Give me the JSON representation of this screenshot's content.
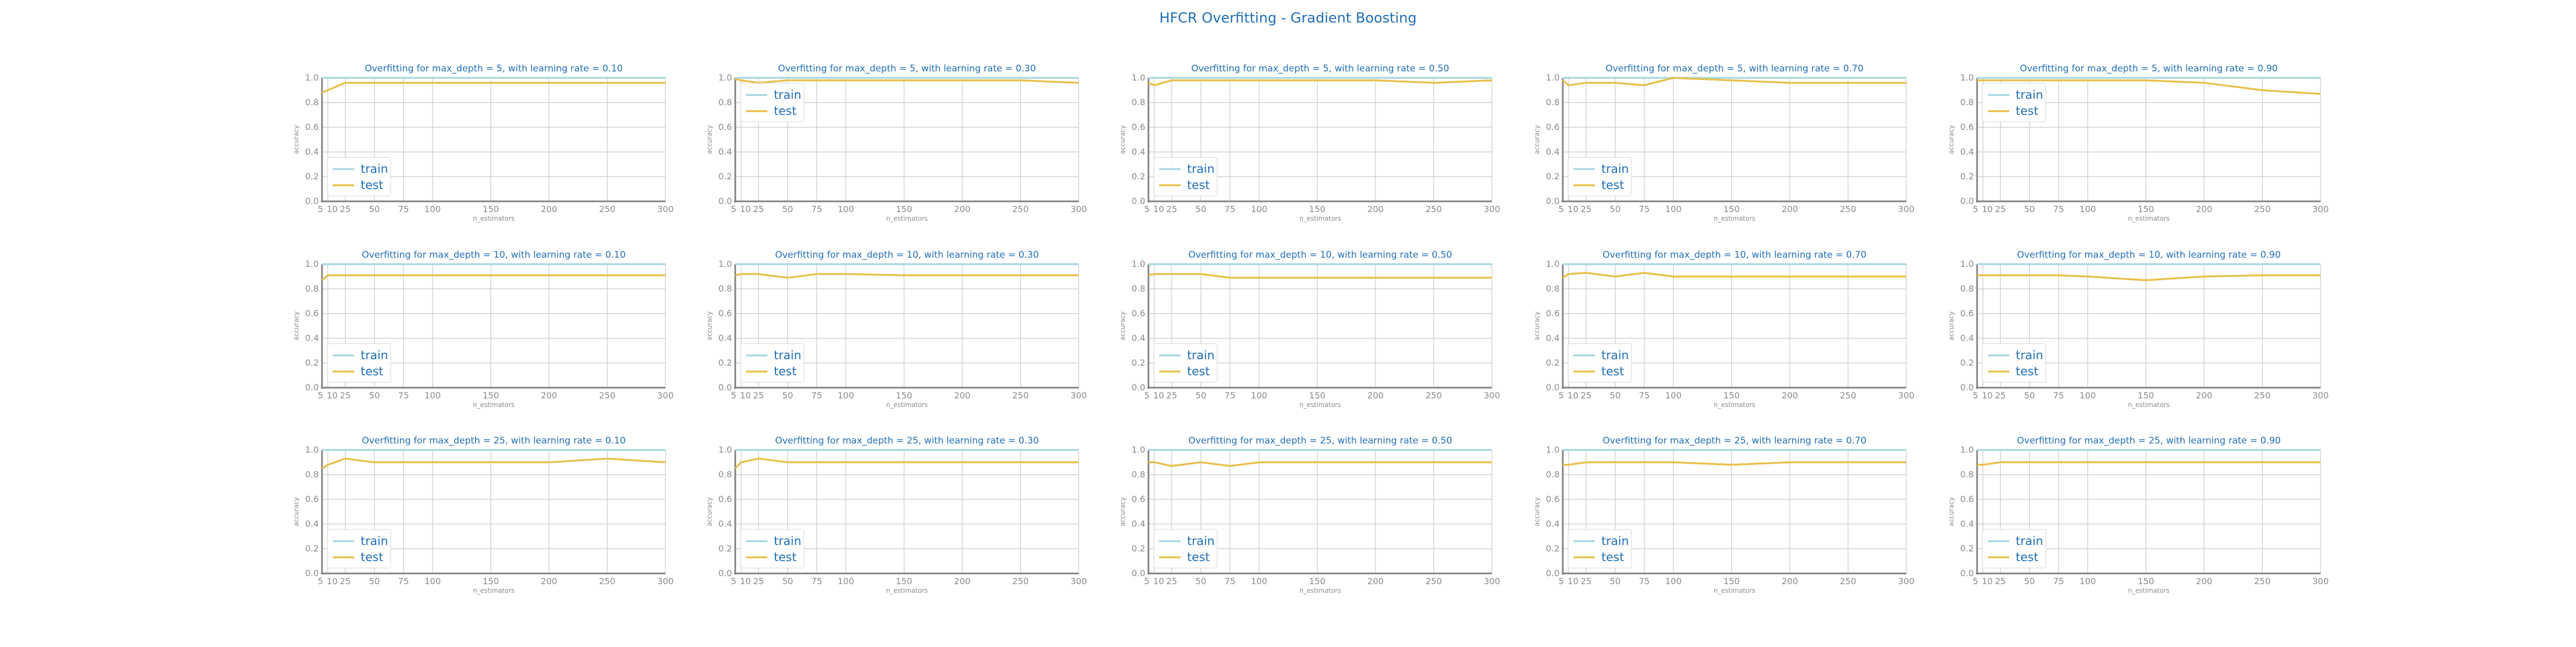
{
  "title": "HFCR Overfitting - Gradient Boosting",
  "colors": {
    "train": "#a9d8e0",
    "test": "#e8c04a",
    "title": "#1f6fb5",
    "grid": "#c8c8c8",
    "axis": "#7f7f7f",
    "tick_text": "#8a8a8a"
  },
  "chart_data": [
    {
      "type": "line",
      "title": "Overfitting for max_depth = 5, with learning rate = 0.10",
      "xlabel": "n_estimators",
      "ylabel": "accuracy",
      "x": [
        5,
        10,
        25,
        50,
        75,
        100,
        150,
        200,
        250,
        300
      ],
      "xticks": [
        5,
        10,
        25,
        50,
        75,
        100,
        150,
        200,
        250,
        300
      ],
      "ylim": [
        0,
        1
      ],
      "yticks": [
        0.0,
        0.2,
        0.4,
        0.6,
        0.8,
        1.0
      ],
      "grid": true,
      "legend": "lower left",
      "series": [
        {
          "name": "train",
          "values": [
            1,
            1,
            1,
            1,
            1,
            1,
            1,
            1,
            1,
            1
          ]
        },
        {
          "name": "test",
          "values": [
            0.88,
            0.9,
            0.96,
            0.96,
            0.96,
            0.96,
            0.96,
            0.96,
            0.96,
            0.96
          ]
        }
      ]
    },
    {
      "type": "line",
      "title": "Overfitting for max_depth = 5, with learning rate = 0.30",
      "xlabel": "n_estimators",
      "ylabel": "accuracy",
      "x": [
        5,
        10,
        25,
        50,
        75,
        100,
        150,
        200,
        250,
        300
      ],
      "xticks": [
        5,
        10,
        25,
        50,
        75,
        100,
        150,
        200,
        250,
        300
      ],
      "ylim": [
        0,
        1
      ],
      "yticks": [
        0.0,
        0.2,
        0.4,
        0.6,
        0.8,
        1.0
      ],
      "grid": true,
      "legend": "upper left",
      "series": [
        {
          "name": "train",
          "values": [
            1,
            1,
            1,
            1,
            1,
            1,
            1,
            1,
            1,
            1
          ]
        },
        {
          "name": "test",
          "values": [
            0.99,
            0.98,
            0.96,
            0.98,
            0.98,
            0.98,
            0.98,
            0.98,
            0.98,
            0.96
          ]
        }
      ]
    },
    {
      "type": "line",
      "title": "Overfitting for max_depth = 5, with learning rate = 0.50",
      "xlabel": "n_estimators",
      "ylabel": "accuracy",
      "x": [
        5,
        10,
        25,
        50,
        75,
        100,
        150,
        200,
        250,
        300
      ],
      "xticks": [
        5,
        10,
        25,
        50,
        75,
        100,
        150,
        200,
        250,
        300
      ],
      "ylim": [
        0,
        1
      ],
      "yticks": [
        0.0,
        0.2,
        0.4,
        0.6,
        0.8,
        1.0
      ],
      "grid": true,
      "legend": "lower left",
      "series": [
        {
          "name": "train",
          "values": [
            1,
            1,
            1,
            1,
            1,
            1,
            1,
            1,
            1,
            1
          ]
        },
        {
          "name": "test",
          "values": [
            0.96,
            0.94,
            0.98,
            0.98,
            0.98,
            0.98,
            0.98,
            0.98,
            0.96,
            0.98
          ]
        }
      ]
    },
    {
      "type": "line",
      "title": "Overfitting for max_depth = 5, with learning rate = 0.70",
      "xlabel": "n_estimators",
      "ylabel": "accuracy",
      "x": [
        5,
        10,
        25,
        50,
        75,
        100,
        150,
        200,
        250,
        300
      ],
      "xticks": [
        5,
        10,
        25,
        50,
        75,
        100,
        150,
        200,
        250,
        300
      ],
      "ylim": [
        0,
        1
      ],
      "yticks": [
        0.0,
        0.2,
        0.4,
        0.6,
        0.8,
        1.0
      ],
      "grid": true,
      "legend": "lower left",
      "series": [
        {
          "name": "train",
          "values": [
            1,
            1,
            1,
            1,
            1,
            1,
            1,
            1,
            1,
            1
          ]
        },
        {
          "name": "test",
          "values": [
            0.98,
            0.94,
            0.96,
            0.96,
            0.94,
            1.0,
            0.98,
            0.96,
            0.96,
            0.96
          ]
        }
      ]
    },
    {
      "type": "line",
      "title": "Overfitting for max_depth = 5, with learning rate = 0.90",
      "xlabel": "n_estimators",
      "ylabel": "accuracy",
      "x": [
        5,
        10,
        25,
        50,
        75,
        100,
        150,
        200,
        250,
        300
      ],
      "xticks": [
        5,
        10,
        25,
        50,
        75,
        100,
        150,
        200,
        250,
        300
      ],
      "ylim": [
        0,
        1
      ],
      "yticks": [
        0.0,
        0.2,
        0.4,
        0.6,
        0.8,
        1.0
      ],
      "grid": true,
      "legend": "upper left",
      "series": [
        {
          "name": "train",
          "values": [
            1,
            1,
            1,
            1,
            1,
            1,
            1,
            1,
            1,
            1
          ]
        },
        {
          "name": "test",
          "values": [
            0.98,
            0.98,
            0.98,
            0.98,
            0.98,
            0.98,
            0.98,
            0.96,
            0.9,
            0.87
          ]
        }
      ]
    },
    {
      "type": "line",
      "title": "Overfitting for max_depth = 10, with learning rate = 0.10",
      "xlabel": "n_estimators",
      "ylabel": "accuracy",
      "x": [
        5,
        10,
        25,
        50,
        75,
        100,
        150,
        200,
        250,
        300
      ],
      "xticks": [
        5,
        10,
        25,
        50,
        75,
        100,
        150,
        200,
        250,
        300
      ],
      "ylim": [
        0,
        1
      ],
      "yticks": [
        0.0,
        0.2,
        0.4,
        0.6,
        0.8,
        1.0
      ],
      "grid": true,
      "legend": "lower left",
      "series": [
        {
          "name": "train",
          "values": [
            1,
            1,
            1,
            1,
            1,
            1,
            1,
            1,
            1,
            1
          ]
        },
        {
          "name": "test",
          "values": [
            0.87,
            0.91,
            0.91,
            0.91,
            0.91,
            0.91,
            0.91,
            0.91,
            0.91,
            0.91
          ]
        }
      ]
    },
    {
      "type": "line",
      "title": "Overfitting for max_depth = 10, with learning rate = 0.30",
      "xlabel": "n_estimators",
      "ylabel": "accuracy",
      "x": [
        5,
        10,
        25,
        50,
        75,
        100,
        150,
        200,
        250,
        300
      ],
      "xticks": [
        5,
        10,
        25,
        50,
        75,
        100,
        150,
        200,
        250,
        300
      ],
      "ylim": [
        0,
        1
      ],
      "yticks": [
        0.0,
        0.2,
        0.4,
        0.6,
        0.8,
        1.0
      ],
      "grid": true,
      "legend": "lower left",
      "series": [
        {
          "name": "train",
          "values": [
            1,
            1,
            1,
            1,
            1,
            1,
            1,
            1,
            1,
            1
          ]
        },
        {
          "name": "test",
          "values": [
            0.91,
            0.92,
            0.92,
            0.89,
            0.92,
            0.92,
            0.91,
            0.91,
            0.91,
            0.91
          ]
        }
      ]
    },
    {
      "type": "line",
      "title": "Overfitting for max_depth = 10, with learning rate = 0.50",
      "xlabel": "n_estimators",
      "ylabel": "accuracy",
      "x": [
        5,
        10,
        25,
        50,
        75,
        100,
        150,
        200,
        250,
        300
      ],
      "xticks": [
        5,
        10,
        25,
        50,
        75,
        100,
        150,
        200,
        250,
        300
      ],
      "ylim": [
        0,
        1
      ],
      "yticks": [
        0.0,
        0.2,
        0.4,
        0.6,
        0.8,
        1.0
      ],
      "grid": true,
      "legend": "lower left",
      "series": [
        {
          "name": "train",
          "values": [
            1,
            1,
            1,
            1,
            1,
            1,
            1,
            1,
            1,
            1
          ]
        },
        {
          "name": "test",
          "values": [
            0.91,
            0.92,
            0.92,
            0.92,
            0.89,
            0.89,
            0.89,
            0.89,
            0.89,
            0.89
          ]
        }
      ]
    },
    {
      "type": "line",
      "title": "Overfitting for max_depth = 10, with learning rate = 0.70",
      "xlabel": "n_estimators",
      "ylabel": "accuracy",
      "x": [
        5,
        10,
        25,
        50,
        75,
        100,
        150,
        200,
        250,
        300
      ],
      "xticks": [
        5,
        10,
        25,
        50,
        75,
        100,
        150,
        200,
        250,
        300
      ],
      "ylim": [
        0,
        1
      ],
      "yticks": [
        0.0,
        0.2,
        0.4,
        0.6,
        0.8,
        1.0
      ],
      "grid": true,
      "legend": "lower left",
      "series": [
        {
          "name": "train",
          "values": [
            1,
            1,
            1,
            1,
            1,
            1,
            1,
            1,
            1,
            1
          ]
        },
        {
          "name": "test",
          "values": [
            0.89,
            0.92,
            0.93,
            0.9,
            0.93,
            0.9,
            0.9,
            0.9,
            0.9,
            0.9
          ]
        }
      ]
    },
    {
      "type": "line",
      "title": "Overfitting for max_depth = 10, with learning rate = 0.90",
      "xlabel": "n_estimators",
      "ylabel": "accuracy",
      "x": [
        5,
        10,
        25,
        50,
        75,
        100,
        150,
        200,
        250,
        300
      ],
      "xticks": [
        5,
        10,
        25,
        50,
        75,
        100,
        150,
        200,
        250,
        300
      ],
      "ylim": [
        0,
        1
      ],
      "yticks": [
        0.0,
        0.2,
        0.4,
        0.6,
        0.8,
        1.0
      ],
      "grid": true,
      "legend": "lower left",
      "series": [
        {
          "name": "train",
          "values": [
            1,
            1,
            1,
            1,
            1,
            1,
            1,
            1,
            1,
            1
          ]
        },
        {
          "name": "test",
          "values": [
            0.91,
            0.91,
            0.91,
            0.91,
            0.91,
            0.9,
            0.87,
            0.9,
            0.91,
            0.91
          ]
        }
      ]
    },
    {
      "type": "line",
      "title": "Overfitting for max_depth = 25, with learning rate = 0.10",
      "xlabel": "n_estimators",
      "ylabel": "accuracy",
      "x": [
        5,
        10,
        25,
        50,
        75,
        100,
        150,
        200,
        250,
        300
      ],
      "xticks": [
        5,
        10,
        25,
        50,
        75,
        100,
        150,
        200,
        250,
        300
      ],
      "ylim": [
        0,
        1
      ],
      "yticks": [
        0.0,
        0.2,
        0.4,
        0.6,
        0.8,
        1.0
      ],
      "grid": true,
      "legend": "lower left",
      "series": [
        {
          "name": "train",
          "values": [
            1,
            1,
            1,
            1,
            1,
            1,
            1,
            1,
            1,
            1
          ]
        },
        {
          "name": "test",
          "values": [
            0.85,
            0.88,
            0.93,
            0.9,
            0.9,
            0.9,
            0.9,
            0.9,
            0.93,
            0.9
          ]
        }
      ]
    },
    {
      "type": "line",
      "title": "Overfitting for max_depth = 25, with learning rate = 0.30",
      "xlabel": "n_estimators",
      "ylabel": "accuracy",
      "x": [
        5,
        10,
        25,
        50,
        75,
        100,
        150,
        200,
        250,
        300
      ],
      "xticks": [
        5,
        10,
        25,
        50,
        75,
        100,
        150,
        200,
        250,
        300
      ],
      "ylim": [
        0,
        1
      ],
      "yticks": [
        0.0,
        0.2,
        0.4,
        0.6,
        0.8,
        1.0
      ],
      "grid": true,
      "legend": "lower left",
      "series": [
        {
          "name": "train",
          "values": [
            1,
            1,
            1,
            1,
            1,
            1,
            1,
            1,
            1,
            1
          ]
        },
        {
          "name": "test",
          "values": [
            0.85,
            0.9,
            0.93,
            0.9,
            0.9,
            0.9,
            0.9,
            0.9,
            0.9,
            0.9
          ]
        }
      ]
    },
    {
      "type": "line",
      "title": "Overfitting for max_depth = 25, with learning rate = 0.50",
      "xlabel": "n_estimators",
      "ylabel": "accuracy",
      "x": [
        5,
        10,
        25,
        50,
        75,
        100,
        150,
        200,
        250,
        300
      ],
      "xticks": [
        5,
        10,
        25,
        50,
        75,
        100,
        150,
        200,
        250,
        300
      ],
      "ylim": [
        0,
        1
      ],
      "yticks": [
        0.0,
        0.2,
        0.4,
        0.6,
        0.8,
        1.0
      ],
      "grid": true,
      "legend": "lower left",
      "series": [
        {
          "name": "train",
          "values": [
            1,
            1,
            1,
            1,
            1,
            1,
            1,
            1,
            1,
            1
          ]
        },
        {
          "name": "test",
          "values": [
            0.9,
            0.9,
            0.87,
            0.9,
            0.87,
            0.9,
            0.9,
            0.9,
            0.9,
            0.9
          ]
        }
      ]
    },
    {
      "type": "line",
      "title": "Overfitting for max_depth = 25, with learning rate = 0.70",
      "xlabel": "n_estimators",
      "ylabel": "accuracy",
      "x": [
        5,
        10,
        25,
        50,
        75,
        100,
        150,
        200,
        250,
        300
      ],
      "xticks": [
        5,
        10,
        25,
        50,
        75,
        100,
        150,
        200,
        250,
        300
      ],
      "ylim": [
        0,
        1
      ],
      "yticks": [
        0.0,
        0.2,
        0.4,
        0.6,
        0.8,
        1.0
      ],
      "grid": true,
      "legend": "lower left",
      "series": [
        {
          "name": "train",
          "values": [
            1,
            1,
            1,
            1,
            1,
            1,
            1,
            1,
            1,
            1
          ]
        },
        {
          "name": "test",
          "values": [
            0.88,
            0.88,
            0.9,
            0.9,
            0.9,
            0.9,
            0.88,
            0.9,
            0.9,
            0.9
          ]
        }
      ]
    },
    {
      "type": "line",
      "title": "Overfitting for max_depth = 25, with learning rate = 0.90",
      "xlabel": "n_estimators",
      "ylabel": "accuracy",
      "x": [
        5,
        10,
        25,
        50,
        75,
        100,
        150,
        200,
        250,
        300
      ],
      "xticks": [
        5,
        10,
        25,
        50,
        75,
        100,
        150,
        200,
        250,
        300
      ],
      "ylim": [
        0,
        1
      ],
      "yticks": [
        0.0,
        0.2,
        0.4,
        0.6,
        0.8,
        1.0
      ],
      "grid": true,
      "legend": "lower left",
      "series": [
        {
          "name": "train",
          "values": [
            1,
            1,
            1,
            1,
            1,
            1,
            1,
            1,
            1,
            1
          ]
        },
        {
          "name": "test",
          "values": [
            0.88,
            0.88,
            0.9,
            0.9,
            0.9,
            0.9,
            0.9,
            0.9,
            0.9,
            0.9
          ]
        }
      ]
    }
  ]
}
